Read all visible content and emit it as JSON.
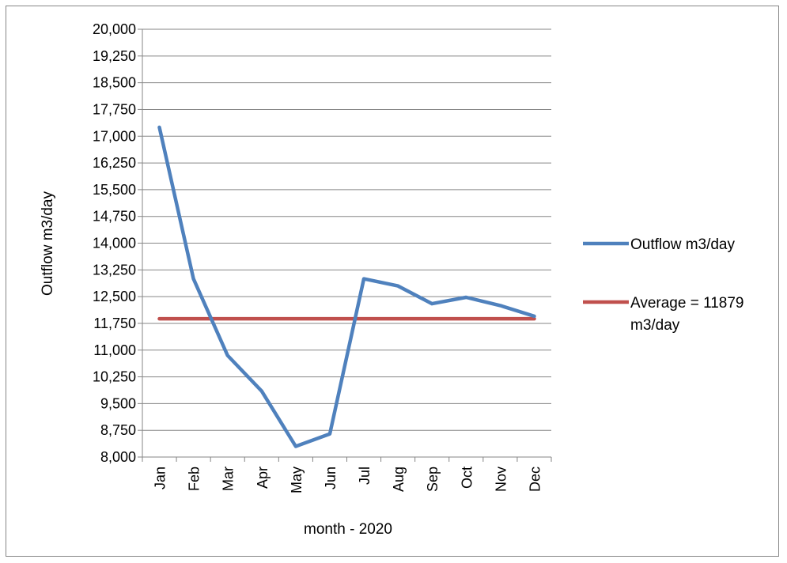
{
  "chart_data": {
    "type": "line",
    "title": "",
    "xlabel": "month - 2020",
    "ylabel": "Outflow m3/day",
    "categories": [
      "Jan",
      "Feb",
      "Mar",
      "Apr",
      "May",
      "Jun",
      "Jul",
      "Aug",
      "Sep",
      "Oct",
      "Nov",
      "Dec"
    ],
    "ylim": [
      8000,
      20000
    ],
    "y_tick_step": 750,
    "y_tick_labels": [
      "8,000",
      "8,750",
      "9,500",
      "10,250",
      "11,000",
      "11,750",
      "12,500",
      "13,250",
      "14,000",
      "14,750",
      "15,500",
      "16,250",
      "17,000",
      "17,750",
      "18,500",
      "19,250",
      "20,000"
    ],
    "grid": true,
    "legend_position": "right",
    "series": [
      {
        "name": "Outflow m3/day",
        "color": "#4F81BD",
        "values": [
          17250,
          13000,
          10850,
          9850,
          8300,
          8650,
          13000,
          12800,
          12300,
          12480,
          12250,
          11950
        ]
      },
      {
        "name": "Average = 11879 m3/day",
        "name_lines": [
          "Average = 11879",
          "m3/day"
        ],
        "color": "#C0504D",
        "values": [
          11879,
          11879,
          11879,
          11879,
          11879,
          11879,
          11879,
          11879,
          11879,
          11879,
          11879,
          11879
        ]
      }
    ]
  }
}
